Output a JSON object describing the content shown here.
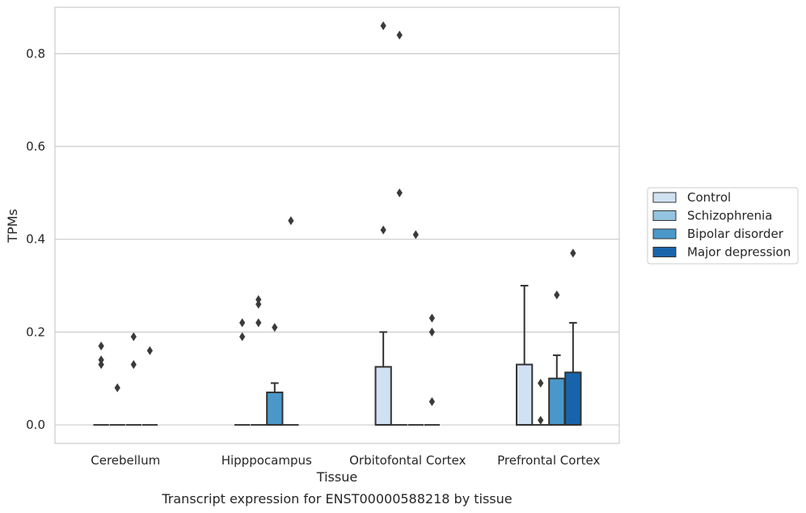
{
  "chart_data": {
    "type": "box",
    "xlabel": "Tissue",
    "ylabel": "TPMs",
    "caption": "Transcript expression for ENST00000588218 by tissue",
    "ylim": [
      -0.04,
      0.9
    ],
    "yticks": [
      0.0,
      0.2,
      0.4,
      0.6,
      0.8
    ],
    "ytick_labels": [
      "0.0",
      "0.2",
      "0.4",
      "0.6",
      "0.8"
    ],
    "grid": "horizontal",
    "legend_position": "right",
    "categories": [
      "Cerebellum",
      "Hipppocampus",
      "Orbitofontal Cortex",
      "Prefrontal Cortex"
    ],
    "series": [
      {
        "name": "Control",
        "color": "#d0e1f2"
      },
      {
        "name": "Schizophrenia",
        "color": "#94c4df"
      },
      {
        "name": "Bipolar disorder",
        "color": "#4a98c9"
      },
      {
        "name": "Major depression",
        "color": "#1764ab"
      }
    ],
    "boxes": [
      {
        "category": 0,
        "series": 0,
        "q1": 0,
        "median": 0,
        "q3": 0,
        "whisker_high": 0,
        "outliers": [
          0.17,
          0.14,
          0.13
        ]
      },
      {
        "category": 0,
        "series": 1,
        "q1": 0,
        "median": 0,
        "q3": 0,
        "whisker_high": 0,
        "outliers": [
          0.08
        ]
      },
      {
        "category": 0,
        "series": 2,
        "q1": 0,
        "median": 0,
        "q3": 0,
        "whisker_high": 0,
        "outliers": [
          0.19,
          0.13
        ]
      },
      {
        "category": 0,
        "series": 3,
        "q1": 0,
        "median": 0,
        "q3": 0,
        "whisker_high": 0,
        "outliers": [
          0.16
        ]
      },
      {
        "category": 1,
        "series": 0,
        "q1": 0,
        "median": 0,
        "q3": 0,
        "whisker_high": 0,
        "outliers": [
          0.22,
          0.19
        ]
      },
      {
        "category": 1,
        "series": 1,
        "q1": 0,
        "median": 0,
        "q3": 0,
        "whisker_high": 0,
        "outliers": [
          0.27,
          0.26,
          0.22
        ]
      },
      {
        "category": 1,
        "series": 2,
        "q1": 0,
        "median": 0,
        "q3": 0.07,
        "whisker_high": 0.09,
        "outliers": [
          0.21
        ]
      },
      {
        "category": 1,
        "series": 3,
        "q1": 0,
        "median": 0,
        "q3": 0,
        "whisker_high": 0,
        "outliers": [
          0.44
        ]
      },
      {
        "category": 2,
        "series": 0,
        "q1": 0,
        "median": 0,
        "q3": 0.125,
        "whisker_high": 0.2,
        "outliers": [
          0.86,
          0.42
        ]
      },
      {
        "category": 2,
        "series": 1,
        "q1": 0,
        "median": 0,
        "q3": 0,
        "whisker_high": 0,
        "outliers": [
          0.84,
          0.5
        ]
      },
      {
        "category": 2,
        "series": 2,
        "q1": 0,
        "median": 0,
        "q3": 0,
        "whisker_high": 0,
        "outliers": [
          0.41
        ]
      },
      {
        "category": 2,
        "series": 3,
        "q1": 0,
        "median": 0,
        "q3": 0,
        "whisker_high": 0,
        "outliers": [
          0.23,
          0.2,
          0.05
        ]
      },
      {
        "category": 3,
        "series": 0,
        "q1": 0,
        "median": 0,
        "q3": 0.13,
        "whisker_high": 0.3,
        "outliers": []
      },
      {
        "category": 3,
        "series": 1,
        "q1": 0,
        "median": 0,
        "q3": 0,
        "whisker_high": 0,
        "outliers": [
          0.09,
          0.01
        ]
      },
      {
        "category": 3,
        "series": 2,
        "q1": 0,
        "median": 0,
        "q3": 0.1,
        "whisker_high": 0.15,
        "outliers": [
          0.28
        ]
      },
      {
        "category": 3,
        "series": 3,
        "q1": 0,
        "median": 0,
        "q3": 0.113,
        "whisker_high": 0.22,
        "outliers": [
          0.37
        ]
      }
    ]
  }
}
